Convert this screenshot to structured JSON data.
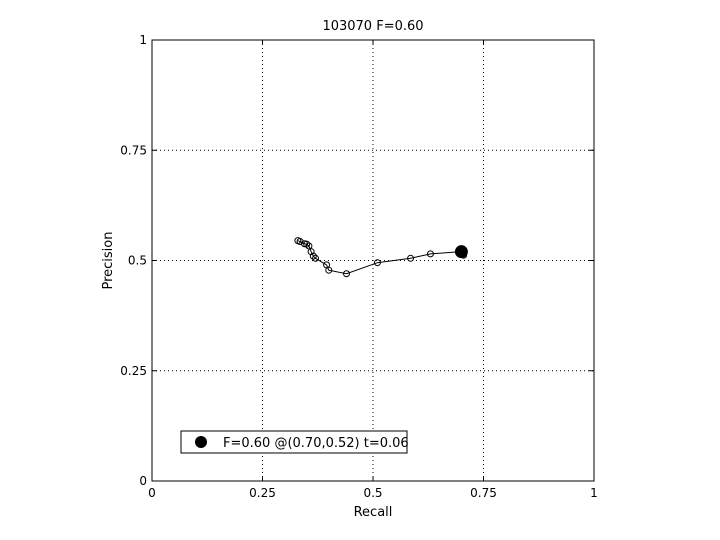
{
  "chart_data": {
    "type": "line",
    "title": "103070 F=0.60",
    "xlabel": "Recall",
    "ylabel": "Precision",
    "xlim": [
      0,
      1
    ],
    "ylim": [
      0,
      1
    ],
    "xticks": [
      0,
      0.25,
      0.5,
      0.75,
      1
    ],
    "yticks": [
      0,
      0.25,
      0.5,
      0.75,
      1
    ],
    "xtick_labels": [
      "0",
      "0.25",
      "0.5",
      "0.75",
      "1"
    ],
    "ytick_labels": [
      "0",
      "0.25",
      "0.5",
      "0.75",
      "1"
    ],
    "grid": true,
    "legend_position": "bottom-left",
    "legend_text": "F=0.60 @(0.70,0.52) t=0.06",
    "series": [
      {
        "x": [
          0.33,
          0.335,
          0.345,
          0.35,
          0.355,
          0.36,
          0.365,
          0.37,
          0.395,
          0.4,
          0.44,
          0.51,
          0.585,
          0.63,
          0.7,
          0.705
        ],
        "y": [
          0.545,
          0.543,
          0.538,
          0.537,
          0.533,
          0.52,
          0.51,
          0.505,
          0.49,
          0.478,
          0.47,
          0.495,
          0.505,
          0.515,
          0.52,
          0.512
        ]
      }
    ],
    "best_point": {
      "x": 0.7,
      "y": 0.52
    }
  }
}
